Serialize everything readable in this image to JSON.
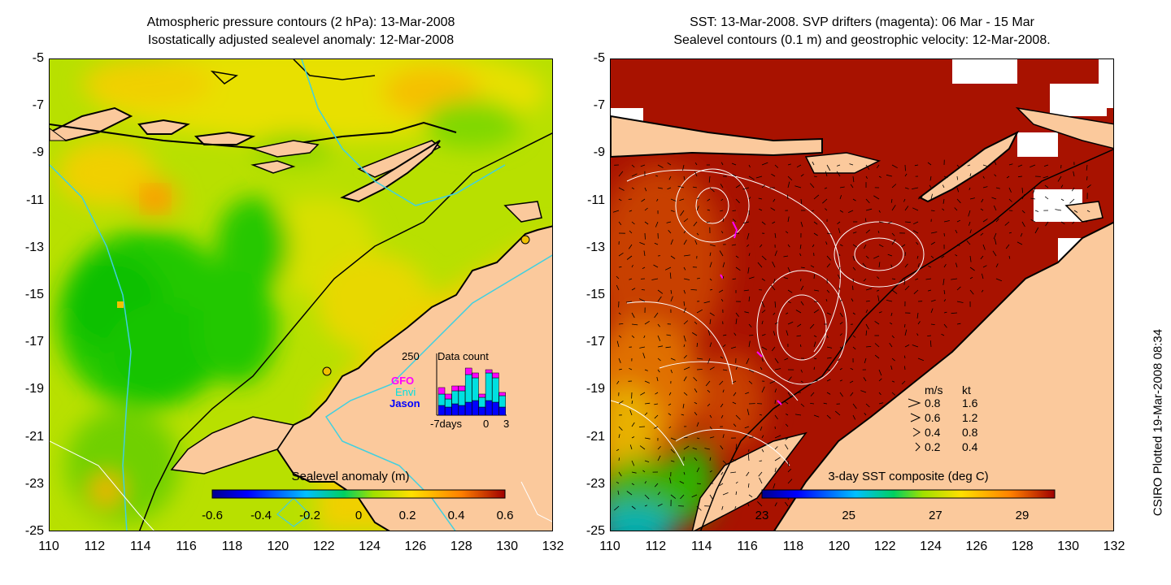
{
  "left": {
    "title_line1": "Atmospheric pressure contours (2 hPa): 13-Mar-2008",
    "title_line2": "Isostatically adjusted sealevel anomaly: 12-Mar-2008",
    "colorbar_label": "Sealevel anomaly (m)",
    "colorbar_ticks": [
      "-0.6",
      "-0.4",
      "-0.2",
      "0",
      "0.2",
      "0.4",
      "0.6"
    ],
    "data_count": {
      "max_label": "250",
      "title": "Data count",
      "legend": [
        "GFO",
        "Envi",
        "Jason"
      ],
      "legend_colors": [
        "#ff00ff",
        "#00e0e0",
        "#0000ff"
      ],
      "x_labels": [
        "-7days",
        "0",
        "3"
      ]
    }
  },
  "right": {
    "title_line1": "SST: 13-Mar-2008. SVP drifters (magenta): 06 Mar - 15 Mar",
    "title_line2": "Sealevel contours (0.1 m) and geostrophic velocity: 12-Mar-2008.",
    "colorbar_label": "3-day SST composite (deg C)",
    "colorbar_ticks": [
      "23",
      "25",
      "27",
      "29"
    ],
    "velocity_legend": {
      "header_ms": "m/s",
      "header_kt": "kt",
      "rows": [
        {
          "ms": "0.8",
          "kt": "1.6"
        },
        {
          "ms": "0.6",
          "kt": "1.2"
        },
        {
          "ms": "0.4",
          "kt": "0.8"
        },
        {
          "ms": "0.2",
          "kt": "0.4"
        }
      ]
    }
  },
  "axes": {
    "x_ticks": [
      "110",
      "112",
      "114",
      "116",
      "118",
      "120",
      "122",
      "124",
      "126",
      "128",
      "130",
      "132"
    ],
    "y_ticks": [
      "-5",
      "-7",
      "-9",
      "-11",
      "-13",
      "-15",
      "-17",
      "-19",
      "-21",
      "-23",
      "-25"
    ]
  },
  "credit": "CSIRO Plotted 19-Mar-2008 08:34",
  "colors": {
    "land": "#fbc99c",
    "ssl_low": "#00c000",
    "ssl_mid": "#a8e000",
    "ssl_high": "#ffb000",
    "sst_warm": "#aa1400",
    "sst_cool": "#00b0b0"
  }
}
